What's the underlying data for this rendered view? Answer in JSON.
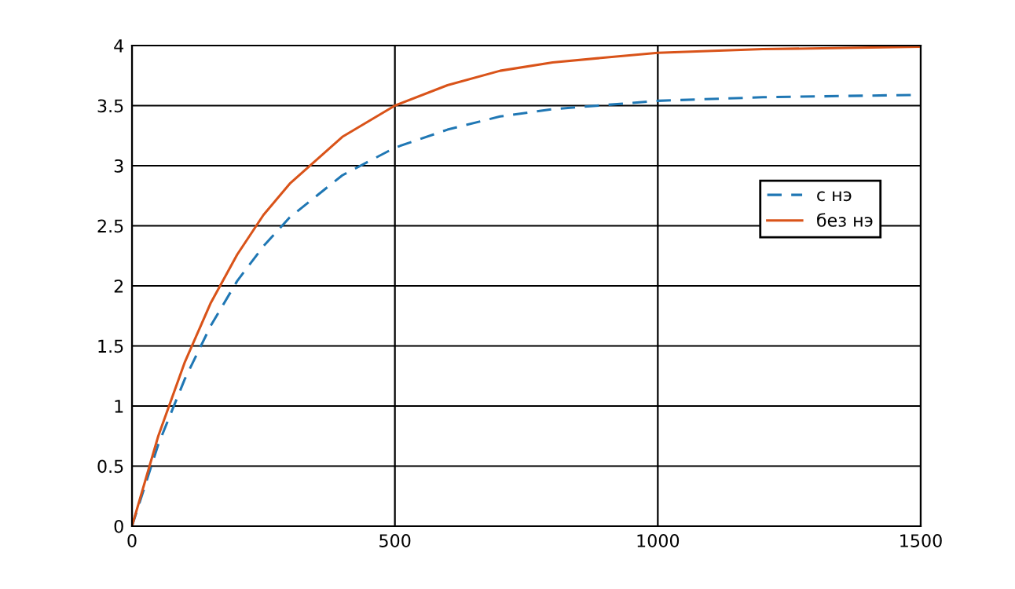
{
  "chart_data": {
    "type": "line",
    "x": [
      0,
      50,
      100,
      150,
      200,
      250,
      300,
      400,
      500,
      600,
      700,
      800,
      1000,
      1200,
      1500
    ],
    "series": [
      {
        "name": "с нэ",
        "color": "#1f77b4",
        "line_style": "dashed",
        "values": [
          0,
          0.68,
          1.22,
          1.67,
          2.04,
          2.33,
          2.57,
          2.92,
          3.15,
          3.3,
          3.41,
          3.47,
          3.54,
          3.57,
          3.59
        ]
      },
      {
        "name": "без нэ",
        "color": "#d95319",
        "line_style": "solid",
        "values": [
          0,
          0.75,
          1.36,
          1.86,
          2.26,
          2.59,
          2.85,
          3.24,
          3.5,
          3.67,
          3.79,
          3.86,
          3.94,
          3.97,
          3.99
        ]
      }
    ],
    "xlim": [
      0,
      1500
    ],
    "xticks": [
      0,
      500,
      1000,
      1500
    ],
    "ylim": [
      0,
      4
    ],
    "yticks": [
      0,
      0.5,
      1,
      1.5,
      2,
      2.5,
      3,
      3.5,
      4
    ],
    "grid": true,
    "legend": "right"
  }
}
